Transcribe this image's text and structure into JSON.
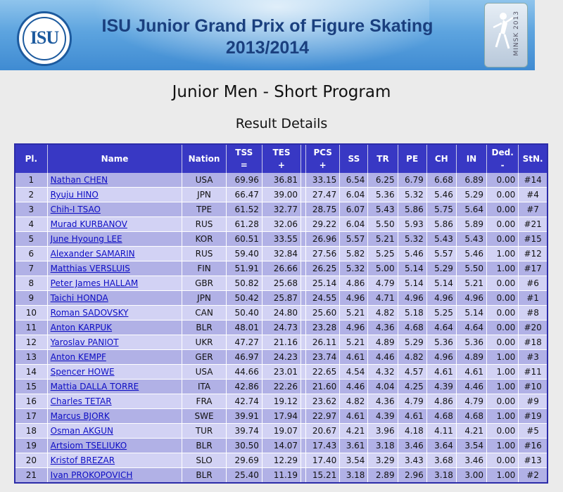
{
  "banner": {
    "logo_text": "ISU",
    "title_line1": "ISU Junior Grand Prix of Figure Skating",
    "title_line2": "2013/2014",
    "event_badge": "MINSK 2013"
  },
  "page_title": "Junior Men - Short Program",
  "sub_title": "Result Details",
  "table": {
    "headers": {
      "pl": "Pl.",
      "name": "Name",
      "nation": "Nation",
      "tss": "TSS",
      "tss_sub": "=",
      "tes": "TES",
      "tes_sub": "+",
      "pcs": "PCS",
      "pcs_sub": "+",
      "ss": "SS",
      "tr": "TR",
      "pe": "PE",
      "ch": "CH",
      "in": "IN",
      "ded": "Ded.",
      "ded_sub": "-",
      "stn": "StN."
    },
    "rows": [
      {
        "pl": "1",
        "name": "Nathan CHEN",
        "nation": "USA",
        "tss": "69.96",
        "tes": "36.81",
        "pcs": "33.15",
        "ss": "6.54",
        "tr": "6.25",
        "pe": "6.79",
        "ch": "6.68",
        "in": "6.89",
        "ded": "0.00",
        "stn": "#14"
      },
      {
        "pl": "2",
        "name": "Ryuju HINO",
        "nation": "JPN",
        "tss": "66.47",
        "tes": "39.00",
        "pcs": "27.47",
        "ss": "6.04",
        "tr": "5.36",
        "pe": "5.32",
        "ch": "5.46",
        "in": "5.29",
        "ded": "0.00",
        "stn": "#4"
      },
      {
        "pl": "3",
        "name": "Chih-I TSAO",
        "nation": "TPE",
        "tss": "61.52",
        "tes": "32.77",
        "pcs": "28.75",
        "ss": "6.07",
        "tr": "5.43",
        "pe": "5.86",
        "ch": "5.75",
        "in": "5.64",
        "ded": "0.00",
        "stn": "#7"
      },
      {
        "pl": "4",
        "name": "Murad KURBANOV",
        "nation": "RUS",
        "tss": "61.28",
        "tes": "32.06",
        "pcs": "29.22",
        "ss": "6.04",
        "tr": "5.50",
        "pe": "5.93",
        "ch": "5.86",
        "in": "5.89",
        "ded": "0.00",
        "stn": "#21"
      },
      {
        "pl": "5",
        "name": "June Hyoung LEE",
        "nation": "KOR",
        "tss": "60.51",
        "tes": "33.55",
        "pcs": "26.96",
        "ss": "5.57",
        "tr": "5.21",
        "pe": "5.32",
        "ch": "5.43",
        "in": "5.43",
        "ded": "0.00",
        "stn": "#15"
      },
      {
        "pl": "6",
        "name": "Alexander SAMARIN",
        "nation": "RUS",
        "tss": "59.40",
        "tes": "32.84",
        "pcs": "27.56",
        "ss": "5.82",
        "tr": "5.25",
        "pe": "5.46",
        "ch": "5.57",
        "in": "5.46",
        "ded": "1.00",
        "stn": "#12"
      },
      {
        "pl": "7",
        "name": "Matthias VERSLUIS",
        "nation": "FIN",
        "tss": "51.91",
        "tes": "26.66",
        "pcs": "26.25",
        "ss": "5.32",
        "tr": "5.00",
        "pe": "5.14",
        "ch": "5.29",
        "in": "5.50",
        "ded": "1.00",
        "stn": "#17"
      },
      {
        "pl": "8",
        "name": "Peter James HALLAM",
        "nation": "GBR",
        "tss": "50.82",
        "tes": "25.68",
        "pcs": "25.14",
        "ss": "4.86",
        "tr": "4.79",
        "pe": "5.14",
        "ch": "5.14",
        "in": "5.21",
        "ded": "0.00",
        "stn": "#6"
      },
      {
        "pl": "9",
        "name": "Taichi HONDA",
        "nation": "JPN",
        "tss": "50.42",
        "tes": "25.87",
        "pcs": "24.55",
        "ss": "4.96",
        "tr": "4.71",
        "pe": "4.96",
        "ch": "4.96",
        "in": "4.96",
        "ded": "0.00",
        "stn": "#1"
      },
      {
        "pl": "10",
        "name": "Roman SADOVSKY",
        "nation": "CAN",
        "tss": "50.40",
        "tes": "24.80",
        "pcs": "25.60",
        "ss": "5.21",
        "tr": "4.82",
        "pe": "5.18",
        "ch": "5.25",
        "in": "5.14",
        "ded": "0.00",
        "stn": "#8"
      },
      {
        "pl": "11",
        "name": "Anton KARPUK",
        "nation": "BLR",
        "tss": "48.01",
        "tes": "24.73",
        "pcs": "23.28",
        "ss": "4.96",
        "tr": "4.36",
        "pe": "4.68",
        "ch": "4.64",
        "in": "4.64",
        "ded": "0.00",
        "stn": "#20"
      },
      {
        "pl": "12",
        "name": "Yaroslav PANIOT",
        "nation": "UKR",
        "tss": "47.27",
        "tes": "21.16",
        "pcs": "26.11",
        "ss": "5.21",
        "tr": "4.89",
        "pe": "5.29",
        "ch": "5.36",
        "in": "5.36",
        "ded": "0.00",
        "stn": "#18"
      },
      {
        "pl": "13",
        "name": "Anton KEMPF",
        "nation": "GER",
        "tss": "46.97",
        "tes": "24.23",
        "pcs": "23.74",
        "ss": "4.61",
        "tr": "4.46",
        "pe": "4.82",
        "ch": "4.96",
        "in": "4.89",
        "ded": "1.00",
        "stn": "#3"
      },
      {
        "pl": "14",
        "name": "Spencer HOWE",
        "nation": "USA",
        "tss": "44.66",
        "tes": "23.01",
        "pcs": "22.65",
        "ss": "4.54",
        "tr": "4.32",
        "pe": "4.57",
        "ch": "4.61",
        "in": "4.61",
        "ded": "1.00",
        "stn": "#11"
      },
      {
        "pl": "15",
        "name": "Mattia DALLA TORRE",
        "nation": "ITA",
        "tss": "42.86",
        "tes": "22.26",
        "pcs": "21.60",
        "ss": "4.46",
        "tr": "4.04",
        "pe": "4.25",
        "ch": "4.39",
        "in": "4.46",
        "ded": "1.00",
        "stn": "#10"
      },
      {
        "pl": "16",
        "name": "Charles TETAR",
        "nation": "FRA",
        "tss": "42.74",
        "tes": "19.12",
        "pcs": "23.62",
        "ss": "4.82",
        "tr": "4.36",
        "pe": "4.79",
        "ch": "4.86",
        "in": "4.79",
        "ded": "0.00",
        "stn": "#9"
      },
      {
        "pl": "17",
        "name": "Marcus BJORK",
        "nation": "SWE",
        "tss": "39.91",
        "tes": "17.94",
        "pcs": "22.97",
        "ss": "4.61",
        "tr": "4.39",
        "pe": "4.61",
        "ch": "4.68",
        "in": "4.68",
        "ded": "1.00",
        "stn": "#19"
      },
      {
        "pl": "18",
        "name": "Osman AKGUN",
        "nation": "TUR",
        "tss": "39.74",
        "tes": "19.07",
        "pcs": "20.67",
        "ss": "4.21",
        "tr": "3.96",
        "pe": "4.18",
        "ch": "4.11",
        "in": "4.21",
        "ded": "0.00",
        "stn": "#5"
      },
      {
        "pl": "19",
        "name": "Artsiom TSELIUKO",
        "nation": "BLR",
        "tss": "30.50",
        "tes": "14.07",
        "pcs": "17.43",
        "ss": "3.61",
        "tr": "3.18",
        "pe": "3.46",
        "ch": "3.64",
        "in": "3.54",
        "ded": "1.00",
        "stn": "#16"
      },
      {
        "pl": "20",
        "name": "Kristof BREZAR",
        "nation": "SLO",
        "tss": "29.69",
        "tes": "12.29",
        "pcs": "17.40",
        "ss": "3.54",
        "tr": "3.29",
        "pe": "3.43",
        "ch": "3.68",
        "in": "3.46",
        "ded": "0.00",
        "stn": "#13"
      },
      {
        "pl": "21",
        "name": "Ivan PROKOPOVICH",
        "nation": "BLR",
        "tss": "25.40",
        "tes": "11.19",
        "pcs": "15.21",
        "ss": "3.18",
        "tr": "2.89",
        "pe": "2.96",
        "ch": "3.18",
        "in": "3.00",
        "ded": "1.00",
        "stn": "#2"
      }
    ]
  }
}
